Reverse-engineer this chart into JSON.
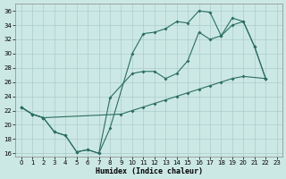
{
  "xlabel": "Humidex (Indice chaleur)",
  "bg_color": "#cce8e4",
  "grid_color": "#aacccc",
  "line_color": "#2a6e60",
  "ylim": [
    15.5,
    37.0
  ],
  "xlim": [
    -0.5,
    23.5
  ],
  "yticks": [
    16,
    18,
    20,
    22,
    24,
    26,
    28,
    30,
    32,
    34,
    36
  ],
  "xticks": [
    0,
    1,
    2,
    3,
    4,
    5,
    6,
    7,
    8,
    9,
    10,
    11,
    12,
    13,
    14,
    15,
    16,
    17,
    18,
    19,
    20,
    21,
    22,
    23
  ],
  "l1x": [
    0,
    1,
    2,
    3,
    4,
    5,
    6,
    7,
    8,
    10,
    11,
    12,
    13,
    14,
    15,
    16,
    17,
    18,
    19,
    20,
    21,
    22
  ],
  "l1y": [
    22.5,
    21.5,
    21.0,
    19.0,
    18.5,
    16.2,
    16.5,
    16.0,
    19.5,
    30.0,
    32.8,
    33.0,
    33.5,
    34.5,
    34.3,
    36.0,
    35.8,
    32.5,
    35.0,
    34.5,
    31.0,
    26.5
  ],
  "l2x": [
    0,
    1,
    2,
    3,
    4,
    5,
    6,
    7,
    8,
    10,
    11,
    12,
    13,
    14,
    15,
    16,
    17,
    18,
    19,
    20,
    21,
    22
  ],
  "l2y": [
    22.5,
    21.5,
    21.0,
    19.0,
    18.5,
    16.2,
    16.5,
    16.0,
    23.8,
    27.2,
    27.5,
    27.5,
    26.5,
    27.2,
    29.0,
    33.0,
    32.0,
    32.5,
    34.0,
    34.5,
    31.0,
    26.5
  ],
  "l3x": [
    0,
    1,
    2,
    9,
    10,
    11,
    12,
    13,
    14,
    15,
    16,
    17,
    18,
    19,
    20,
    22
  ],
  "l3y": [
    22.5,
    21.5,
    21.0,
    21.5,
    22.0,
    22.5,
    23.0,
    23.5,
    24.0,
    24.5,
    25.0,
    25.5,
    26.0,
    26.5,
    26.8,
    26.5
  ]
}
